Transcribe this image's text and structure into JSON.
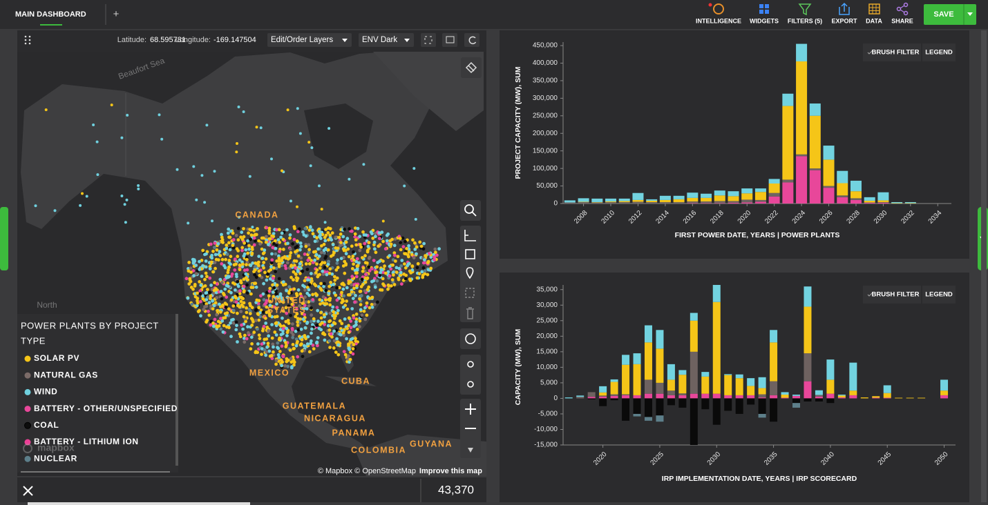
{
  "header": {
    "tab": "MAIN DASHBOARD",
    "add": "+",
    "tools": [
      "INTELLIGENCE",
      "WIDGETS",
      "FILTERS (5)",
      "EXPORT",
      "DATA",
      "SHARE"
    ],
    "save": "SAVE"
  },
  "map": {
    "latitude_label": "Latitude:",
    "latitude": "68.595781",
    "longitude_label": "Longitude:",
    "longitude": "-169.147504",
    "layers": "Edit/Order Layers",
    "style": "ENV Dark",
    "places": [
      "CANADA",
      "UNITED",
      "STATES",
      "MEXICO",
      "CUBA",
      "GUATEMALA",
      "NICARAGUA",
      "PANAMA",
      "COLOMBIA",
      "GUYANA",
      "North",
      "Beaufort Sea"
    ],
    "legend": {
      "title_lines": [
        "POWER PLANTS BY PROJECT",
        "TYPE"
      ],
      "items": [
        {
          "label": "SOLAR PV",
          "color": "#f5c518"
        },
        {
          "label": "NATURAL GAS",
          "color": "#7b6b68"
        },
        {
          "label": "WIND",
          "color": "#6fd0de"
        },
        {
          "label": "BATTERY - OTHER/UNSPECIFIED",
          "color": "#e8479a"
        },
        {
          "label": "COAL",
          "color": "#0d0d0d"
        },
        {
          "label": "BATTERY - LITHIUM ION",
          "color": "#ec3f95"
        },
        {
          "label": "NUCLEAR",
          "color": "#5d7f8a"
        }
      ]
    },
    "logo": "mapbox",
    "attribution": "© Mapbox © OpenStreetMap",
    "improve": "Improve this map",
    "count": "43,370"
  },
  "chart_data": [
    {
      "type": "bar",
      "stacked": true,
      "buttons": [
        "BRUSH FILTER",
        "LEGEND"
      ],
      "y_label": "PROJECT CAPACITY (MW), SUM",
      "x_label": "FIRST POWER DATE, YEARS | POWER PLANTS",
      "x": [
        2007,
        2008,
        2009,
        2010,
        2011,
        2012,
        2013,
        2014,
        2015,
        2016,
        2017,
        2018,
        2019,
        2020,
        2021,
        2022,
        2023,
        2024,
        2025,
        2026,
        2027,
        2028,
        2029,
        2030,
        2031,
        2032
      ],
      "series": [
        {
          "color": "#e8479a",
          "values": [
            0,
            0,
            0,
            0,
            0,
            0,
            0,
            0,
            0,
            1000,
            1000,
            1000,
            2000,
            3000,
            5000,
            20000,
            60000,
            135000,
            95000,
            45000,
            18000,
            10000,
            2000,
            2000,
            0,
            0
          ]
        },
        {
          "color": "#6e6462",
          "values": [
            3000,
            4000,
            3000,
            4000,
            4000,
            5000,
            4000,
            4000,
            4000,
            5000,
            5000,
            6000,
            5000,
            8000,
            5000,
            10000,
            8000,
            5000,
            5000,
            5000,
            5000,
            5000,
            1000,
            2000,
            0,
            0
          ]
        },
        {
          "color": "#f5c518",
          "values": [
            0,
            1000,
            1000,
            2000,
            3000,
            5000,
            4000,
            6000,
            8000,
            10000,
            10000,
            16000,
            14000,
            18000,
            23000,
            27000,
            210000,
            265000,
            150000,
            75000,
            35000,
            20000,
            5000,
            5000,
            1000,
            1000
          ]
        },
        {
          "color": "#72d3e0",
          "values": [
            6000,
            10000,
            10000,
            8000,
            7000,
            20000,
            4000,
            12000,
            10000,
            15000,
            12000,
            14000,
            14000,
            14000,
            10000,
            13000,
            35000,
            50000,
            35000,
            40000,
            35000,
            30000,
            10000,
            23000,
            3000,
            3000
          ]
        }
      ],
      "xlim": [
        2006.5,
        2035
      ],
      "xticks": [
        2008,
        2010,
        2012,
        2014,
        2016,
        2018,
        2020,
        2022,
        2024,
        2026,
        2028,
        2030,
        2032,
        2034
      ],
      "ylim": [
        0,
        460000
      ],
      "yticks": [
        0,
        {
          "value": 50000,
          "label": "50,000"
        },
        {
          "value": 100000,
          "label": "100,000"
        },
        {
          "value": 150000,
          "label": "150,000"
        },
        {
          "value": 200000,
          "label": "200,000"
        },
        {
          "value": 250000,
          "label": "250,000"
        },
        {
          "value": 300000,
          "label": "300,000"
        },
        {
          "value": 350000,
          "label": "350,000"
        },
        {
          "value": 400000,
          "label": "400,000"
        },
        {
          "value": 450000,
          "label": "450,000"
        }
      ]
    },
    {
      "type": "bar",
      "stacked": true,
      "buttons": [
        "BRUSH FILTER",
        "LEGEND"
      ],
      "y_label": "CAPACITY (MW), SUM",
      "x_label": "IRP IMPLEMENTATION DATE, YEARS | IRP SCORECARD",
      "x": [
        2017,
        2018,
        2019,
        2020,
        2021,
        2022,
        2023,
        2024,
        2025,
        2026,
        2027,
        2028,
        2029,
        2030,
        2031,
        2032,
        2033,
        2034,
        2035,
        2036,
        2037,
        2038,
        2039,
        2040,
        2041,
        2042,
        2043,
        2044,
        2045,
        2046,
        2047,
        2048,
        2049,
        2050
      ],
      "series": [
        {
          "color": "#e8479a",
          "values": [
            0,
            0,
            500,
            600,
            800,
            1000,
            1000,
            1500,
            1500,
            1000,
            1000,
            1500,
            1500,
            1500,
            1000,
            1000,
            1000,
            300,
            1000,
            200,
            800,
            5500,
            600,
            1500,
            300,
            1000,
            0,
            200,
            200,
            0,
            0,
            0,
            0,
            1000
          ]
        },
        {
          "color": "#6e6260",
          "values": [
            0,
            500,
            1500,
            300,
            500,
            300,
            0,
            4500,
            3500,
            1500,
            600,
            13500,
            0,
            0,
            0,
            0,
            0,
            1000,
            4500,
            0,
            0,
            9000,
            500,
            0,
            0,
            0,
            0,
            0,
            0,
            0,
            0,
            0,
            0,
            0
          ]
        },
        {
          "color": "#f5c518",
          "values": [
            0,
            0,
            0,
            1000,
            4000,
            9500,
            10000,
            12000,
            11000,
            3500,
            6000,
            10000,
            5500,
            29500,
            6500,
            5500,
            3000,
            2000,
            12500,
            1000,
            0,
            15000,
            0,
            4500,
            600,
            1500,
            300,
            500,
            1500,
            200,
            200,
            200,
            0,
            1500
          ]
        },
        {
          "color": "#72d3e0",
          "values": [
            300,
            400,
            0,
            2000,
            800,
            3200,
            3500,
            5500,
            6000,
            5000,
            1500,
            2500,
            1500,
            5500,
            300,
            1200,
            2500,
            3500,
            4000,
            800,
            400,
            6500,
            1500,
            6500,
            300,
            9000,
            0,
            0,
            2500,
            0,
            0,
            0,
            0,
            3500
          ]
        },
        {
          "color": "#0a0a0a",
          "values": [
            0,
            0,
            -300,
            -2500,
            -600,
            -7200,
            -5000,
            -6000,
            -5500,
            -2200,
            -3000,
            -15000,
            -3500,
            -8500,
            -4000,
            -5000,
            -2000,
            -5000,
            -7500,
            0,
            -1500,
            -1000,
            -1000,
            -1500,
            0,
            0,
            0,
            0,
            0,
            0,
            0,
            0,
            0,
            0
          ]
        },
        {
          "color": "#5d7f8a",
          "values": [
            0,
            0,
            0,
            0,
            0,
            0,
            -800,
            -1200,
            -2000,
            0,
            0,
            0,
            0,
            0,
            0,
            0,
            0,
            -1200,
            0,
            0,
            -1500,
            0,
            0,
            0,
            0,
            0,
            0,
            0,
            0,
            0,
            0,
            0,
            0,
            0
          ]
        }
      ],
      "xlim": [
        2016.5,
        2051
      ],
      "xticks": [
        2020,
        2025,
        2030,
        2035,
        2040,
        2045,
        2050
      ],
      "ylim": [
        -15000,
        36500
      ],
      "yticks": [
        {
          "value": -15000,
          "label": "-15,000"
        },
        {
          "value": -10000,
          "label": "-10,000"
        },
        {
          "value": -5000,
          "label": "-5,000"
        },
        0,
        {
          "value": 5000,
          "label": "5,000"
        },
        {
          "value": 10000,
          "label": "10,000"
        },
        {
          "value": 15000,
          "label": "15,000"
        },
        {
          "value": 20000,
          "label": "20,000"
        },
        {
          "value": 25000,
          "label": "25,000"
        },
        {
          "value": 30000,
          "label": "30,000"
        },
        {
          "value": 35000,
          "label": "35,000"
        }
      ]
    }
  ]
}
